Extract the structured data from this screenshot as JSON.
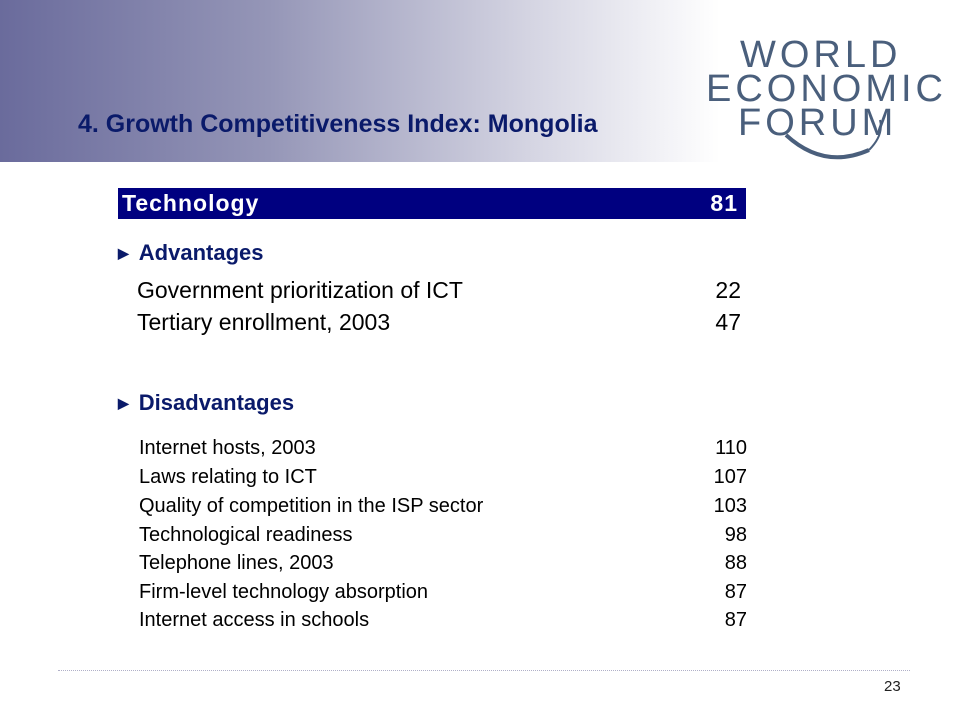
{
  "slide": {
    "title": "4. Growth Competitiveness Index: Mongolia",
    "page_number": "23"
  },
  "logo": {
    "line1": "WORLD",
    "line2": "ECONOMIC",
    "line3": "FORUM"
  },
  "technology": {
    "label": "Technology",
    "rank": "81"
  },
  "advantages": {
    "heading": "Advantages",
    "items": [
      {
        "label": "Government prioritization of ICT",
        "value": "22"
      },
      {
        "label": "Tertiary enrollment, 2003",
        "value": "47"
      }
    ]
  },
  "disadvantages": {
    "heading": "Disadvantages",
    "items": [
      {
        "label": "Internet hosts, 2003",
        "value": "110"
      },
      {
        "label": "Laws relating to ICT",
        "value": "107"
      },
      {
        "label": "Quality of competition in the ISP sector",
        "value": "103"
      },
      {
        "label": "Technological readiness",
        "value": "98"
      },
      {
        "label": "Telephone lines, 2003",
        "value": "88"
      },
      {
        "label": "Firm-level technology absorption",
        "value": "87"
      },
      {
        "label": "Internet access in schools",
        "value": "87"
      }
    ]
  },
  "colors": {
    "title": "#0a1a6a",
    "bar": "#000080",
    "logo": "#4a5f7c"
  }
}
